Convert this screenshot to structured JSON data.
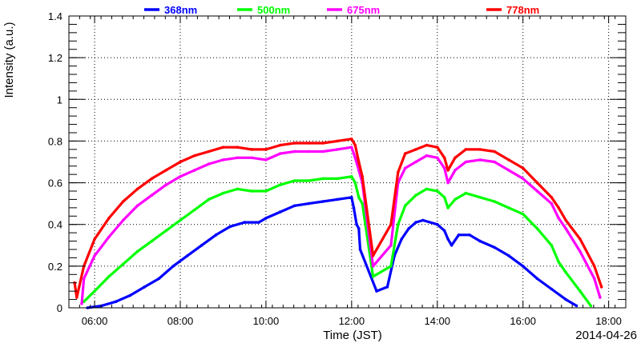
{
  "chart_data": {
    "type": "scatter",
    "title": "",
    "xlabel": "Time (JST)",
    "ylabel": "Intensity (a.u.)",
    "date_label": "2014-04-26",
    "xlim": [
      "05:24",
      "18:24"
    ],
    "ylim": [
      0,
      1.4
    ],
    "grid": true,
    "legend_position": "top",
    "x_ticks": [
      "06:00",
      "08:00",
      "10:00",
      "12:00",
      "14:00",
      "16:00",
      "18:00"
    ],
    "y_ticks": [
      "0",
      "0.2",
      "0.4",
      "0.6",
      "0.8",
      "1",
      "1.2",
      "1.4"
    ],
    "series": [
      {
        "name": "368nm",
        "color": "#0000ff",
        "points": [
          [
            "05:50",
            0.0
          ],
          [
            "06:10",
            0.01
          ],
          [
            "06:30",
            0.03
          ],
          [
            "06:50",
            0.06
          ],
          [
            "07:10",
            0.1
          ],
          [
            "07:30",
            0.14
          ],
          [
            "07:50",
            0.2
          ],
          [
            "08:10",
            0.25
          ],
          [
            "08:30",
            0.3
          ],
          [
            "08:50",
            0.35
          ],
          [
            "09:10",
            0.39
          ],
          [
            "09:30",
            0.41
          ],
          [
            "09:50",
            0.41
          ],
          [
            "10:00",
            0.43
          ],
          [
            "10:20",
            0.46
          ],
          [
            "10:40",
            0.49
          ],
          [
            "11:00",
            0.5
          ],
          [
            "11:20",
            0.51
          ],
          [
            "11:40",
            0.52
          ],
          [
            "12:00",
            0.53
          ],
          [
            "12:03",
            0.48
          ],
          [
            "12:07",
            0.4
          ],
          [
            "12:10",
            0.38
          ],
          [
            "12:12",
            0.28
          ],
          [
            "12:35",
            0.08
          ],
          [
            "12:50",
            0.1
          ],
          [
            "13:00",
            0.25
          ],
          [
            "13:10",
            0.33
          ],
          [
            "13:20",
            0.38
          ],
          [
            "13:30",
            0.41
          ],
          [
            "13:40",
            0.42
          ],
          [
            "14:00",
            0.4
          ],
          [
            "14:10",
            0.37
          ],
          [
            "14:15",
            0.33
          ],
          [
            "14:20",
            0.3
          ],
          [
            "14:30",
            0.35
          ],
          [
            "14:45",
            0.35
          ],
          [
            "15:00",
            0.32
          ],
          [
            "15:20",
            0.29
          ],
          [
            "15:40",
            0.25
          ],
          [
            "16:00",
            0.2
          ],
          [
            "16:20",
            0.14
          ],
          [
            "16:40",
            0.09
          ],
          [
            "17:00",
            0.04
          ],
          [
            "17:15",
            0.01
          ]
        ]
      },
      {
        "name": "500nm",
        "color": "#00ff00",
        "points": [
          [
            "05:45",
            0.03
          ],
          [
            "06:00",
            0.08
          ],
          [
            "06:20",
            0.15
          ],
          [
            "06:40",
            0.21
          ],
          [
            "07:00",
            0.27
          ],
          [
            "07:20",
            0.32
          ],
          [
            "07:40",
            0.37
          ],
          [
            "08:00",
            0.42
          ],
          [
            "08:20",
            0.47
          ],
          [
            "08:40",
            0.52
          ],
          [
            "09:00",
            0.55
          ],
          [
            "09:20",
            0.57
          ],
          [
            "09:40",
            0.56
          ],
          [
            "10:00",
            0.56
          ],
          [
            "10:20",
            0.59
          ],
          [
            "10:40",
            0.61
          ],
          [
            "11:00",
            0.61
          ],
          [
            "11:20",
            0.62
          ],
          [
            "11:40",
            0.62
          ],
          [
            "12:00",
            0.63
          ],
          [
            "12:05",
            0.6
          ],
          [
            "12:10",
            0.53
          ],
          [
            "12:15",
            0.5
          ],
          [
            "12:30",
            0.15
          ],
          [
            "12:55",
            0.2
          ],
          [
            "13:05",
            0.4
          ],
          [
            "13:15",
            0.49
          ],
          [
            "13:30",
            0.54
          ],
          [
            "13:45",
            0.57
          ],
          [
            "14:00",
            0.56
          ],
          [
            "14:10",
            0.53
          ],
          [
            "14:15",
            0.48
          ],
          [
            "14:25",
            0.52
          ],
          [
            "14:40",
            0.55
          ],
          [
            "15:00",
            0.53
          ],
          [
            "15:20",
            0.51
          ],
          [
            "15:40",
            0.48
          ],
          [
            "16:00",
            0.45
          ],
          [
            "16:20",
            0.38
          ],
          [
            "16:40",
            0.3
          ],
          [
            "16:50",
            0.22
          ],
          [
            "17:00",
            0.17
          ],
          [
            "17:20",
            0.08
          ],
          [
            "17:35",
            0.01
          ]
        ]
      },
      {
        "name": "675nm",
        "color": "#ff00ff",
        "points": [
          [
            "05:42",
            0.02
          ],
          [
            "05:45",
            0.14
          ],
          [
            "06:00",
            0.25
          ],
          [
            "06:20",
            0.34
          ],
          [
            "06:40",
            0.42
          ],
          [
            "07:00",
            0.49
          ],
          [
            "07:20",
            0.54
          ],
          [
            "07:40",
            0.59
          ],
          [
            "08:00",
            0.63
          ],
          [
            "08:20",
            0.66
          ],
          [
            "08:40",
            0.69
          ],
          [
            "09:00",
            0.71
          ],
          [
            "09:20",
            0.72
          ],
          [
            "09:40",
            0.72
          ],
          [
            "10:00",
            0.71
          ],
          [
            "10:20",
            0.74
          ],
          [
            "10:40",
            0.75
          ],
          [
            "11:00",
            0.75
          ],
          [
            "11:20",
            0.75
          ],
          [
            "11:40",
            0.76
          ],
          [
            "12:00",
            0.77
          ],
          [
            "12:05",
            0.72
          ],
          [
            "12:10",
            0.66
          ],
          [
            "12:15",
            0.6
          ],
          [
            "12:30",
            0.2
          ],
          [
            "12:55",
            0.3
          ],
          [
            "13:05",
            0.6
          ],
          [
            "13:15",
            0.67
          ],
          [
            "13:30",
            0.7
          ],
          [
            "13:45",
            0.73
          ],
          [
            "14:00",
            0.72
          ],
          [
            "14:10",
            0.67
          ],
          [
            "14:15",
            0.6
          ],
          [
            "14:25",
            0.66
          ],
          [
            "14:40",
            0.7
          ],
          [
            "15:00",
            0.71
          ],
          [
            "15:20",
            0.7
          ],
          [
            "15:40",
            0.66
          ],
          [
            "16:00",
            0.62
          ],
          [
            "16:20",
            0.56
          ],
          [
            "16:40",
            0.5
          ],
          [
            "16:50",
            0.43
          ],
          [
            "17:00",
            0.38
          ],
          [
            "17:20",
            0.27
          ],
          [
            "17:40",
            0.14
          ],
          [
            "17:48",
            0.05
          ]
        ]
      },
      {
        "name": "778nm",
        "color": "#ff0000",
        "points": [
          [
            "05:32",
            0.12
          ],
          [
            "05:35",
            0.05
          ],
          [
            "05:45",
            0.2
          ],
          [
            "06:00",
            0.33
          ],
          [
            "06:20",
            0.43
          ],
          [
            "06:40",
            0.51
          ],
          [
            "07:00",
            0.57
          ],
          [
            "07:20",
            0.62
          ],
          [
            "07:40",
            0.66
          ],
          [
            "08:00",
            0.7
          ],
          [
            "08:20",
            0.73
          ],
          [
            "08:40",
            0.75
          ],
          [
            "09:00",
            0.77
          ],
          [
            "09:20",
            0.77
          ],
          [
            "09:40",
            0.76
          ],
          [
            "10:00",
            0.76
          ],
          [
            "10:20",
            0.78
          ],
          [
            "10:40",
            0.79
          ],
          [
            "11:00",
            0.79
          ],
          [
            "11:20",
            0.79
          ],
          [
            "11:40",
            0.8
          ],
          [
            "12:00",
            0.81
          ],
          [
            "12:05",
            0.78
          ],
          [
            "12:10",
            0.7
          ],
          [
            "12:15",
            0.63
          ],
          [
            "12:30",
            0.25
          ],
          [
            "12:55",
            0.4
          ],
          [
            "13:05",
            0.65
          ],
          [
            "13:15",
            0.74
          ],
          [
            "13:30",
            0.76
          ],
          [
            "13:45",
            0.78
          ],
          [
            "14:00",
            0.77
          ],
          [
            "14:10",
            0.72
          ],
          [
            "14:15",
            0.66
          ],
          [
            "14:25",
            0.72
          ],
          [
            "14:40",
            0.76
          ],
          [
            "15:00",
            0.76
          ],
          [
            "15:20",
            0.75
          ],
          [
            "15:40",
            0.71
          ],
          [
            "16:00",
            0.67
          ],
          [
            "16:20",
            0.6
          ],
          [
            "16:40",
            0.53
          ],
          [
            "16:50",
            0.48
          ],
          [
            "17:00",
            0.42
          ],
          [
            "17:20",
            0.33
          ],
          [
            "17:40",
            0.2
          ],
          [
            "17:50",
            0.1
          ]
        ]
      }
    ]
  }
}
